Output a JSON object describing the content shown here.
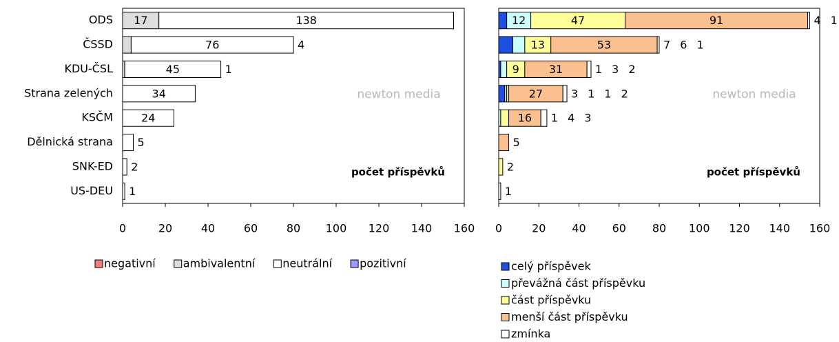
{
  "chart_data": [
    {
      "type": "bar",
      "orientation": "horizontal",
      "stacked": true,
      "categories": [
        "ODS",
        "ČSSD",
        "KDU-ČSL",
        "Strana zelených",
        "KSČM",
        "Dělnická strana",
        "SNK-ED",
        "US-DEU"
      ],
      "series": [
        {
          "name": "negativní",
          "color": "#f47c7c",
          "values": [
            0,
            0,
            0,
            0,
            0,
            0,
            0,
            0
          ]
        },
        {
          "name": "ambivalentní",
          "color": "#dddddd",
          "values": [
            17,
            4,
            1,
            0,
            0,
            0,
            0,
            0
          ]
        },
        {
          "name": "neutrální",
          "color": "#ffffff",
          "values": [
            138,
            76,
            45,
            34,
            24,
            5,
            2,
            1
          ]
        },
        {
          "name": "pozitivní",
          "color": "#9999ff",
          "values": [
            0,
            0,
            0,
            0,
            0,
            0,
            0,
            0
          ]
        }
      ],
      "xlim": [
        0,
        160
      ],
      "xticks": [
        0,
        20,
        40,
        60,
        80,
        100,
        120,
        140,
        160
      ],
      "annotation": "počet příspěvků",
      "watermark": "newton media",
      "legend": "bottom-row"
    },
    {
      "type": "bar",
      "orientation": "horizontal",
      "stacked": true,
      "categories": [
        null,
        null,
        null,
        null,
        null,
        null,
        null,
        null
      ],
      "series": [
        {
          "name": "celý příspěvek",
          "color": "#1f4fe0",
          "values": [
            4,
            7,
            1,
            3,
            0,
            0,
            0,
            0
          ]
        },
        {
          "name": "převážná část příspěvku",
          "color": "#ccffff",
          "values": [
            12,
            6,
            3,
            1,
            1,
            0,
            0,
            0
          ]
        },
        {
          "name": "část příspěvku",
          "color": "#ffff99",
          "values": [
            47,
            13,
            9,
            1,
            4,
            0,
            2,
            0
          ]
        },
        {
          "name": "menší část příspěvku",
          "color": "#fac090",
          "values": [
            91,
            53,
            31,
            27,
            16,
            5,
            0,
            0
          ]
        },
        {
          "name": "zmínka",
          "color": "#ffffff",
          "values": [
            1,
            1,
            2,
            2,
            3,
            0,
            0,
            1
          ]
        }
      ],
      "xlim": [
        0,
        160
      ],
      "xticks": [
        0,
        20,
        40,
        60,
        80,
        100,
        120,
        140,
        160
      ],
      "annotation": "počet příspěvků",
      "watermark": "newton media",
      "legend": "bottom-column"
    }
  ]
}
